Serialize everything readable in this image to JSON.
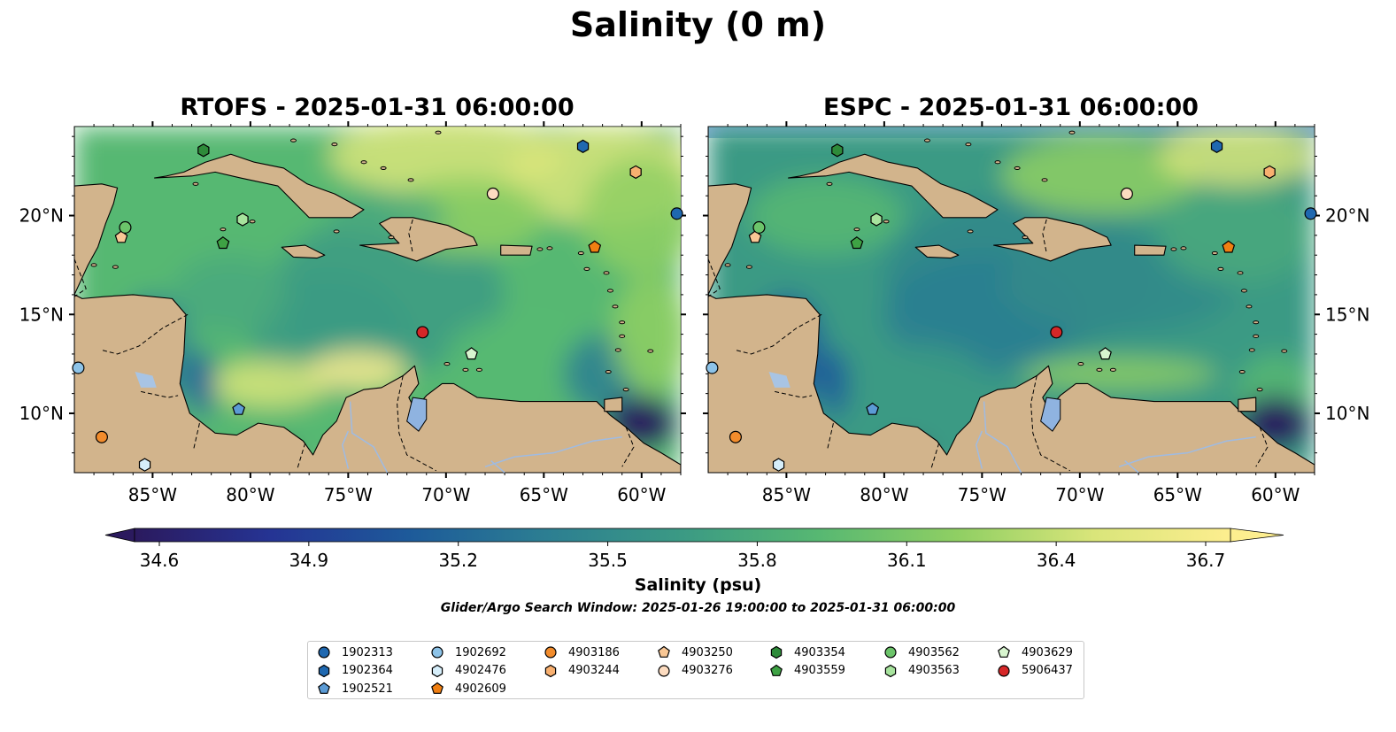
{
  "title": "Salinity (0 m)",
  "panels": [
    {
      "title": "RTOFS - 2025-01-31 06:00:00"
    },
    {
      "title": "ESPC - 2025-01-31 06:00:00"
    }
  ],
  "axes": {
    "lon_ticks": [
      "85°W",
      "80°W",
      "75°W",
      "70°W",
      "65°W",
      "60°W"
    ],
    "lat_ticks": [
      "20°N",
      "15°N",
      "10°N"
    ],
    "lon_range": [
      -89,
      -58
    ],
    "lat_range": [
      7,
      24.5
    ]
  },
  "colorbar": {
    "label": "Salinity (psu)",
    "ticks": [
      "34.6",
      "34.9",
      "35.2",
      "35.5",
      "35.8",
      "36.1",
      "36.4",
      "36.7"
    ],
    "range": [
      34.6,
      36.7
    ],
    "colormap": [
      "#2b1a5e",
      "#253494",
      "#1d5a9a",
      "#2c7e92",
      "#3b9a84",
      "#57b872",
      "#8fcf63",
      "#d9e57a",
      "#fdee8f"
    ]
  },
  "search_window": "Glider/Argo Search Window: 2025-01-26 19:00:00 to 2025-01-31 06:00:00",
  "legend": [
    {
      "id": "1902313",
      "color": "#1f68b0",
      "marker": "circle"
    },
    {
      "id": "1902364",
      "color": "#1f68b0",
      "marker": "hexagon"
    },
    {
      "id": "1902521",
      "color": "#5b9bd5",
      "marker": "pentagon"
    },
    {
      "id": "1902692",
      "color": "#8dc3e8",
      "marker": "circle"
    },
    {
      "id": "4902476",
      "color": "#d6eefa",
      "marker": "hexagon"
    },
    {
      "id": "4902609",
      "color": "#f07f12",
      "marker": "pentagon"
    },
    {
      "id": "4903186",
      "color": "#f28c2c",
      "marker": "circle"
    },
    {
      "id": "4903244",
      "color": "#f8b070",
      "marker": "hexagon"
    },
    {
      "id": "4903250",
      "color": "#f9c795",
      "marker": "pentagon"
    },
    {
      "id": "4903276",
      "color": "#fddcc0",
      "marker": "circle"
    },
    {
      "id": "4903354",
      "color": "#2e8b3a",
      "marker": "hexagon"
    },
    {
      "id": "4903559",
      "color": "#3ea244",
      "marker": "pentagon"
    },
    {
      "id": "4903562",
      "color": "#6cc46a",
      "marker": "circle"
    },
    {
      "id": "4903563",
      "color": "#a7e39d",
      "marker": "hexagon"
    },
    {
      "id": "4903629",
      "color": "#d8f5cf",
      "marker": "pentagon"
    },
    {
      "id": "5906437",
      "color": "#d62728",
      "marker": "circle"
    }
  ],
  "floats": [
    {
      "id": "1902313",
      "lon": -58.2,
      "lat": 20.1
    },
    {
      "id": "1902364",
      "lon": -63.0,
      "lat": 23.5
    },
    {
      "id": "1902521",
      "lon": -80.6,
      "lat": 10.2
    },
    {
      "id": "1902692",
      "lon": -88.8,
      "lat": 12.3
    },
    {
      "id": "4902476",
      "lon": -85.4,
      "lat": 7.4
    },
    {
      "id": "4902609",
      "lon": -62.4,
      "lat": 18.4
    },
    {
      "id": "4903186",
      "lon": -87.6,
      "lat": 8.8
    },
    {
      "id": "4903244",
      "lon": -60.3,
      "lat": 22.2
    },
    {
      "id": "4903250",
      "lon": -86.6,
      "lat": 18.9
    },
    {
      "id": "4903276",
      "lon": -67.6,
      "lat": 21.1
    },
    {
      "id": "4903354",
      "lon": -82.4,
      "lat": 23.3
    },
    {
      "id": "4903559",
      "lon": -81.4,
      "lat": 18.6
    },
    {
      "id": "4903562",
      "lon": -86.4,
      "lat": 19.4
    },
    {
      "id": "4903563",
      "lon": -80.4,
      "lat": 19.8
    },
    {
      "id": "4903629",
      "lon": -68.7,
      "lat": 13.0
    },
    {
      "id": "5906437",
      "lon": -71.2,
      "lat": 14.1
    }
  ]
}
